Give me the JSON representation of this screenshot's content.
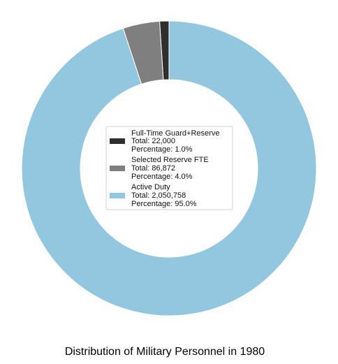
{
  "chart_data": {
    "type": "pie",
    "variant": "donut",
    "title": "Distribution of Military Personnel in 1980",
    "legend_position": "center",
    "slices": [
      {
        "label": "Full-Time Guard+Reserve",
        "total_text": "Total: 22,000",
        "percentage_text": "Percentage: 1.0%",
        "value": 22000,
        "percent": 1.0,
        "color": "#2f2f2f"
      },
      {
        "label": "Selected Reserve FTE",
        "total_text": "Total: 86,872",
        "percentage_text": "Percentage: 4.0%",
        "value": 86872,
        "percent": 4.0,
        "color": "#7f7f7f"
      },
      {
        "label": "Active Duty",
        "total_text": "Total: 2,050,758",
        "percentage_text": "Percentage: 95.0%",
        "value": 2050758,
        "percent": 95.0,
        "color": "#93c7df"
      }
    ]
  }
}
